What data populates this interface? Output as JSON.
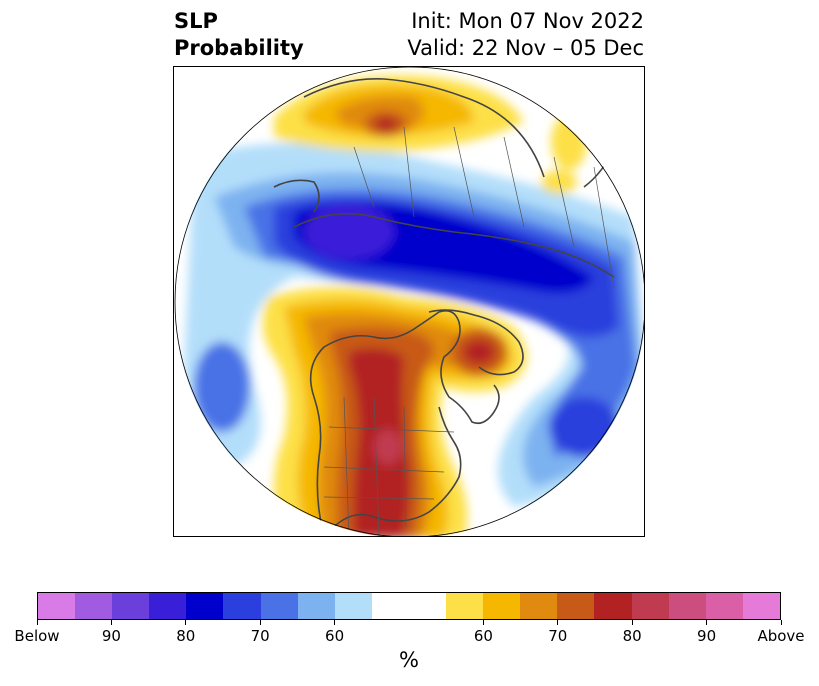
{
  "title": {
    "left_line1": "SLP",
    "left_line2": "Probability",
    "right_line1": "Init: Mon 07 Nov 2022",
    "right_line2": "Valid: 22 Nov – 05 Dec"
  },
  "colorbar": {
    "label": "%",
    "colors": [
      "#d97be6",
      "#a05be0",
      "#6a3fdb",
      "#3a1fd8",
      "#0000cc",
      "#2a3fdd",
      "#4a72e6",
      "#7db2f0",
      "#b3defa",
      "#ffffff",
      "#ffffff",
      "#fde047",
      "#f5b700",
      "#e08a10",
      "#c85a18",
      "#b22222",
      "#c03a50",
      "#cc4e7e",
      "#da5fa6",
      "#e67ad8"
    ],
    "ticks": [
      {
        "label": "Below"
      },
      {
        "label": "90"
      },
      {
        "label": "80"
      },
      {
        "label": "70"
      },
      {
        "label": "60"
      },
      {
        "label": "60"
      },
      {
        "label": "70"
      },
      {
        "label": "80"
      },
      {
        "label": "90"
      },
      {
        "label": "Above"
      }
    ]
  }
}
